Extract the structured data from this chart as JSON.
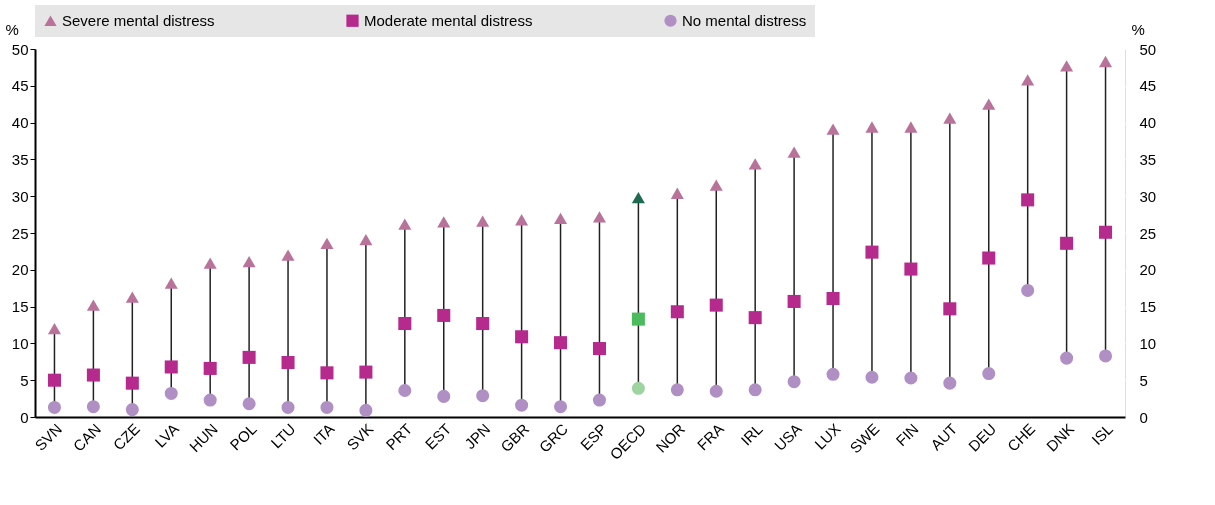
{
  "chart_data": {
    "type": "scatter",
    "categories": [
      "SVN",
      "CAN",
      "CZE",
      "LVA",
      "HUN",
      "POL",
      "LTU",
      "ITA",
      "SVK",
      "PRT",
      "EST",
      "JPN",
      "GBR",
      "GRC",
      "ESP",
      "OECD",
      "NOR",
      "FRA",
      "IRL",
      "USA",
      "LUX",
      "SWE",
      "FIN",
      "AUT",
      "DEU",
      "CHE",
      "DNK",
      "ISL"
    ],
    "series": [
      {
        "name": "Severe mental distress",
        "color": "#b9739a",
        "marker": "triangle",
        "colors": [
          "#b9739a",
          "#b9739a",
          "#b9739a",
          "#b9739a",
          "#b9739a",
          "#b9739a",
          "#b9739a",
          "#b9739a",
          "#b9739a",
          "#b9739a",
          "#b9739a",
          "#b9739a",
          "#b9739a",
          "#b9739a",
          "#b9739a",
          "#1e6b52",
          "#b9739a",
          "#b9739a",
          "#b9739a",
          "#b9739a",
          "#b9739a",
          "#b9739a",
          "#b9739a",
          "#b9739a",
          "#b9739a",
          "#b9739a",
          "#b9739a",
          "#b9739a"
        ],
        "values": [
          12,
          15.2,
          16.3,
          18.2,
          20.9,
          21.1,
          22,
          23.6,
          24.1,
          26.2,
          26.5,
          26.6,
          26.8,
          27,
          27.2,
          29.8,
          30.4,
          31.5,
          34.4,
          36,
          39.1,
          39.4,
          39.4,
          40.6,
          42.5,
          45.8,
          47.7,
          48.3
        ]
      },
      {
        "name": "Moderate mental distress",
        "color": "#b52a8c",
        "marker": "square",
        "colors": [
          "#b52a8c",
          "#b52a8c",
          "#b52a8c",
          "#b52a8c",
          "#b52a8c",
          "#b52a8c",
          "#b52a8c",
          "#b52a8c",
          "#b52a8c",
          "#b52a8c",
          "#b52a8c",
          "#b52a8c",
          "#b52a8c",
          "#b52a8c",
          "#b52a8c",
          "#4cbb5e",
          "#b52a8c",
          "#b52a8c",
          "#b52a8c",
          "#b52a8c",
          "#b52a8c",
          "#b52a8c",
          "#b52a8c",
          "#b52a8c",
          "#b52a8c",
          "#b52a8c",
          "#b52a8c",
          "#b52a8c"
        ],
        "values": [
          5,
          5.7,
          4.6,
          6.8,
          6.6,
          8.1,
          7.4,
          6,
          6.1,
          12.7,
          13.8,
          12.7,
          10.9,
          10.1,
          9.3,
          13.3,
          14.3,
          15.2,
          13.5,
          15.7,
          16.1,
          22.4,
          20.1,
          14.7,
          21.6,
          29.5,
          23.6,
          25.1
        ]
      },
      {
        "name": "No mental distress",
        "color": "#b08fc4",
        "marker": "circle",
        "colors": [
          "#b08fc4",
          "#b08fc4",
          "#b08fc4",
          "#b08fc4",
          "#b08fc4",
          "#b08fc4",
          "#b08fc4",
          "#b08fc4",
          "#b08fc4",
          "#b08fc4",
          "#b08fc4",
          "#b08fc4",
          "#b08fc4",
          "#b08fc4",
          "#b08fc4",
          "#9dd4a0",
          "#b08fc4",
          "#b08fc4",
          "#b08fc4",
          "#b08fc4",
          "#b08fc4",
          "#b08fc4",
          "#b08fc4",
          "#b08fc4",
          "#b08fc4",
          "#b08fc4",
          "#b08fc4",
          "#b08fc4"
        ],
        "values": [
          1.3,
          1.4,
          1,
          3.2,
          2.3,
          1.8,
          1.3,
          1.3,
          0.9,
          3.6,
          2.8,
          2.9,
          1.6,
          1.4,
          2.3,
          3.9,
          3.7,
          3.5,
          3.7,
          4.8,
          5.8,
          5.4,
          5.3,
          4.6,
          5.9,
          17.2,
          8,
          8.3
        ]
      }
    ],
    "ylabel": "%",
    "y2label": "%",
    "ylim": [
      0,
      50
    ],
    "yticks": [
      0,
      5,
      10,
      15,
      20,
      25,
      30,
      35,
      40,
      45,
      50
    ],
    "y2lim": [
      0,
      50
    ],
    "y2ticks": [
      0,
      5,
      10,
      15,
      20,
      25,
      30,
      35,
      40,
      45,
      50
    ],
    "grid": true,
    "legend": "top"
  }
}
